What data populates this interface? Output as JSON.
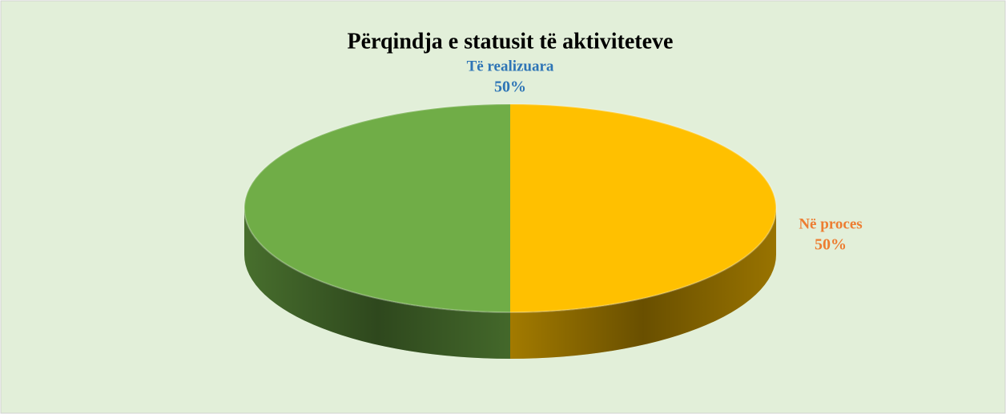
{
  "chart_data": {
    "type": "pie3d",
    "title": "Përqindja e statusit të aktiviteteve",
    "categories": [
      "Të realizuara",
      "Në proces"
    ],
    "values": [
      50,
      50
    ],
    "value_labels": [
      "50%",
      "50%"
    ],
    "colors": [
      "#70ad47",
      "#ffc000"
    ],
    "label_colors": [
      "#2e75b6",
      "#ed7d31"
    ]
  }
}
